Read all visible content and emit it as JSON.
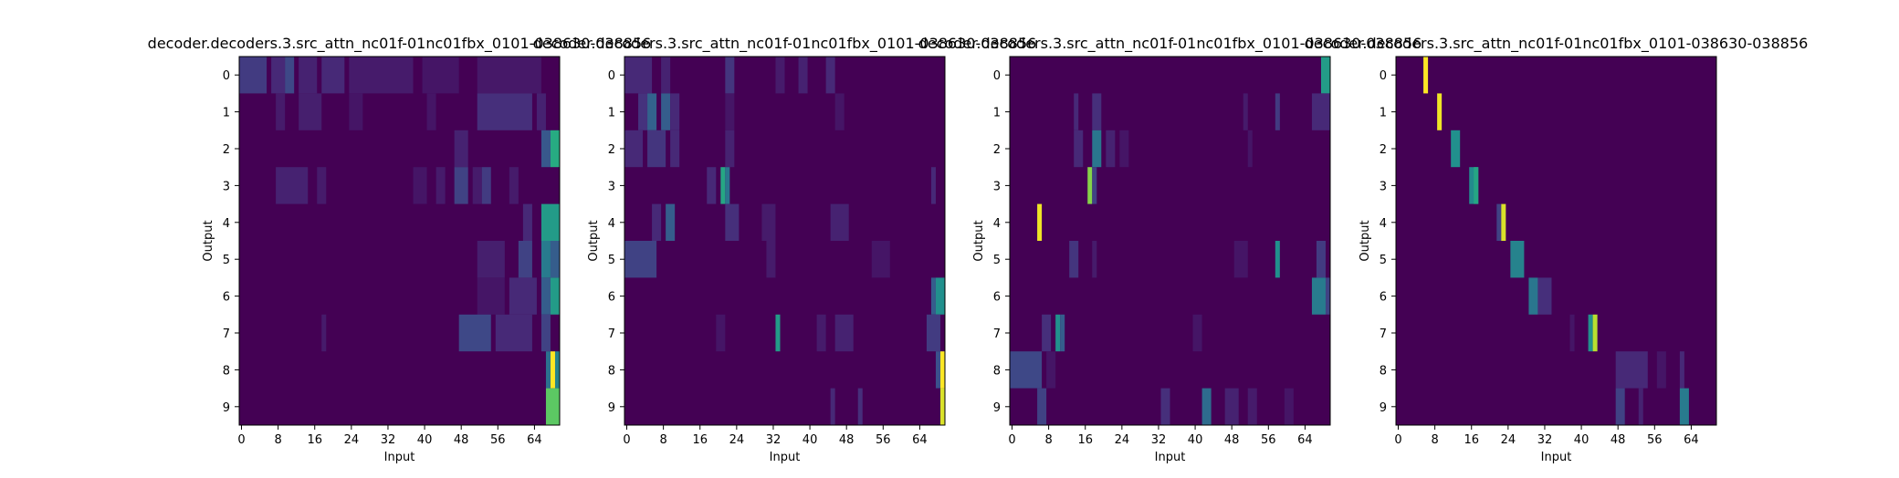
{
  "colors": {
    "background": "#440154",
    "mid": "#21918c",
    "bright": "#fde725"
  },
  "chart_data": [
    {
      "type": "heatmap",
      "title": "decoder.decoders.3.src_attn_nc01f-01nc01fbx_0101-038630-038856",
      "xlabel": "Input",
      "ylabel": "Output",
      "x_ticks": [
        0,
        8,
        16,
        24,
        32,
        40,
        48,
        56,
        64
      ],
      "y_ticks": [
        0,
        1,
        2,
        3,
        4,
        5,
        6,
        7,
        8,
        9
      ],
      "xlim": [
        0,
        70
      ],
      "ylim": [
        0,
        10
      ],
      "rows": [
        [
          [
            0,
            6,
            0.18
          ],
          [
            7,
            3,
            0.12
          ],
          [
            10,
            2,
            0.22
          ],
          [
            13,
            4,
            0.1
          ],
          [
            18,
            5,
            0.12
          ],
          [
            24,
            14,
            0.08
          ],
          [
            40,
            8,
            0.06
          ],
          [
            52,
            14,
            0.07
          ]
        ],
        [
          [
            8,
            2,
            0.08
          ],
          [
            13,
            5,
            0.09
          ],
          [
            24,
            3,
            0.06
          ],
          [
            41,
            2,
            0.06
          ],
          [
            52,
            12,
            0.14
          ],
          [
            65,
            2,
            0.1
          ]
        ],
        [
          [
            47,
            3,
            0.1
          ],
          [
            66,
            2,
            0.28
          ],
          [
            68,
            2,
            0.62
          ]
        ],
        [
          [
            8,
            7,
            0.1
          ],
          [
            17,
            2,
            0.08
          ],
          [
            38,
            3,
            0.06
          ],
          [
            43,
            2,
            0.08
          ],
          [
            47,
            3,
            0.2
          ],
          [
            51,
            2,
            0.08
          ],
          [
            53,
            2,
            0.18
          ],
          [
            59,
            2,
            0.08
          ]
        ],
        [
          [
            62,
            2,
            0.12
          ],
          [
            66,
            4,
            0.55
          ]
        ],
        [
          [
            52,
            6,
            0.09
          ],
          [
            61,
            3,
            0.2
          ],
          [
            66,
            2,
            0.42
          ],
          [
            68,
            2,
            0.3
          ]
        ],
        [
          [
            52,
            6,
            0.06
          ],
          [
            59,
            6,
            0.12
          ],
          [
            66,
            2,
            0.3
          ],
          [
            68,
            2,
            0.55
          ]
        ],
        [
          [
            18,
            1,
            0.08
          ],
          [
            48,
            7,
            0.22
          ],
          [
            56,
            8,
            0.12
          ],
          [
            66,
            2,
            0.2
          ]
        ],
        [
          [
            67,
            1,
            0.38
          ],
          [
            68,
            1,
            1.0
          ],
          [
            69,
            1,
            0.45
          ]
        ],
        [
          [
            67,
            3,
            0.75
          ]
        ]
      ]
    },
    {
      "type": "heatmap",
      "title": "decoder.decoders.3.src_attn_nc01f-01nc01fbx_0101-038630-038856",
      "xlabel": "Input",
      "ylabel": "Output",
      "x_ticks": [
        0,
        8,
        16,
        24,
        32,
        40,
        48,
        56,
        64
      ],
      "y_ticks": [
        0,
        1,
        2,
        3,
        4,
        5,
        6,
        7,
        8,
        9
      ],
      "xlim": [
        0,
        70
      ],
      "ylim": [
        0,
        10
      ],
      "rows": [
        [
          [
            0,
            6,
            0.12
          ],
          [
            8,
            2,
            0.1
          ],
          [
            22,
            2,
            0.16
          ],
          [
            33,
            2,
            0.08
          ],
          [
            38,
            2,
            0.1
          ],
          [
            44,
            2,
            0.12
          ]
        ],
        [
          [
            3,
            2,
            0.15
          ],
          [
            5,
            2,
            0.32
          ],
          [
            8,
            2,
            0.3
          ],
          [
            10,
            2,
            0.12
          ],
          [
            22,
            2,
            0.06
          ],
          [
            46,
            2,
            0.06
          ]
        ],
        [
          [
            0,
            4,
            0.12
          ],
          [
            5,
            4,
            0.16
          ],
          [
            10,
            2,
            0.12
          ],
          [
            22,
            2,
            0.1
          ]
        ],
        [
          [
            18,
            2,
            0.12
          ],
          [
            21,
            1,
            0.6
          ],
          [
            22,
            1,
            0.4
          ],
          [
            67,
            1,
            0.12
          ]
        ],
        [
          [
            6,
            2,
            0.12
          ],
          [
            9,
            2,
            0.3
          ],
          [
            22,
            3,
            0.14
          ],
          [
            30,
            3,
            0.08
          ],
          [
            45,
            4,
            0.1
          ]
        ],
        [
          [
            0,
            7,
            0.2
          ],
          [
            31,
            2,
            0.08
          ],
          [
            54,
            4,
            0.06
          ]
        ],
        [
          [
            68,
            2,
            0.5
          ],
          [
            67,
            1,
            0.3
          ]
        ],
        [
          [
            20,
            2,
            0.06
          ],
          [
            33,
            1,
            0.55
          ],
          [
            42,
            2,
            0.08
          ],
          [
            46,
            4,
            0.1
          ],
          [
            66,
            3,
            0.18
          ]
        ],
        [
          [
            68,
            2,
            0.25
          ],
          [
            69,
            1,
            1.0
          ]
        ],
        [
          [
            45,
            1,
            0.12
          ],
          [
            51,
            1,
            0.14
          ],
          [
            69,
            1,
            0.95
          ]
        ]
      ]
    },
    {
      "type": "heatmap",
      "title": "decoder.decoders.3.src_attn_nc01f-01nc01fbx_0101-038630-038856",
      "xlabel": "Input",
      "ylabel": "Output",
      "x_ticks": [
        0,
        8,
        16,
        24,
        32,
        40,
        48,
        56,
        64
      ],
      "y_ticks": [
        0,
        1,
        2,
        3,
        4,
        5,
        6,
        7,
        8,
        9
      ],
      "xlim": [
        0,
        70
      ],
      "ylim": [
        0,
        10
      ],
      "rows": [
        [
          [
            68,
            2,
            0.55
          ]
        ],
        [
          [
            14,
            1,
            0.12
          ],
          [
            18,
            2,
            0.14
          ],
          [
            51,
            1,
            0.08
          ],
          [
            58,
            1,
            0.18
          ],
          [
            66,
            4,
            0.12
          ]
        ],
        [
          [
            14,
            2,
            0.12
          ],
          [
            18,
            2,
            0.4
          ],
          [
            21,
            2,
            0.1
          ],
          [
            24,
            2,
            0.06
          ],
          [
            52,
            1,
            0.06
          ]
        ],
        [
          [
            17,
            1,
            0.82
          ],
          [
            18,
            1,
            0.2
          ]
        ],
        [
          [
            6,
            1,
            0.98
          ]
        ],
        [
          [
            13,
            2,
            0.16
          ],
          [
            18,
            1,
            0.08
          ],
          [
            49,
            3,
            0.06
          ],
          [
            58,
            1,
            0.5
          ],
          [
            67,
            2,
            0.18
          ]
        ],
        [
          [
            66,
            3,
            0.42
          ],
          [
            69,
            1,
            0.2
          ]
        ],
        [
          [
            7,
            2,
            0.14
          ],
          [
            10,
            1,
            0.5
          ],
          [
            11,
            1,
            0.3
          ],
          [
            40,
            2,
            0.06
          ]
        ],
        [
          [
            0,
            7,
            0.22
          ],
          [
            8,
            2,
            0.06
          ]
        ],
        [
          [
            6,
            2,
            0.2
          ],
          [
            33,
            2,
            0.14
          ],
          [
            42,
            2,
            0.36
          ],
          [
            47,
            3,
            0.1
          ],
          [
            52,
            2,
            0.08
          ],
          [
            60,
            2,
            0.06
          ]
        ]
      ]
    },
    {
      "type": "heatmap",
      "title": "decoder.decoders.3.src_attn_nc01f-01nc01fbx_0101-038630-038856",
      "xlabel": "Input",
      "ylabel": "Output",
      "x_ticks": [
        0,
        8,
        16,
        24,
        32,
        40,
        48,
        56,
        64
      ],
      "y_ticks": [
        0,
        1,
        2,
        3,
        4,
        5,
        6,
        7,
        8,
        9
      ],
      "xlim": [
        0,
        70
      ],
      "ylim": [
        0,
        10
      ],
      "rows": [
        [
          [
            6,
            1,
            1.0
          ]
        ],
        [
          [
            9,
            1,
            0.98
          ]
        ],
        [
          [
            12,
            2,
            0.5
          ]
        ],
        [
          [
            16,
            2,
            0.48
          ],
          [
            17,
            1,
            0.6
          ]
        ],
        [
          [
            22,
            1,
            0.2
          ],
          [
            23,
            1,
            0.95
          ]
        ],
        [
          [
            25,
            3,
            0.45
          ]
        ],
        [
          [
            29,
            2,
            0.4
          ],
          [
            31,
            3,
            0.14
          ]
        ],
        [
          [
            38,
            1,
            0.06
          ],
          [
            42,
            1,
            0.5
          ],
          [
            43,
            1,
            0.9
          ]
        ],
        [
          [
            48,
            7,
            0.12
          ],
          [
            57,
            2,
            0.06
          ],
          [
            62,
            1,
            0.12
          ]
        ],
        [
          [
            48,
            2,
            0.2
          ],
          [
            53,
            1,
            0.1
          ],
          [
            62,
            2,
            0.42
          ]
        ]
      ]
    }
  ]
}
